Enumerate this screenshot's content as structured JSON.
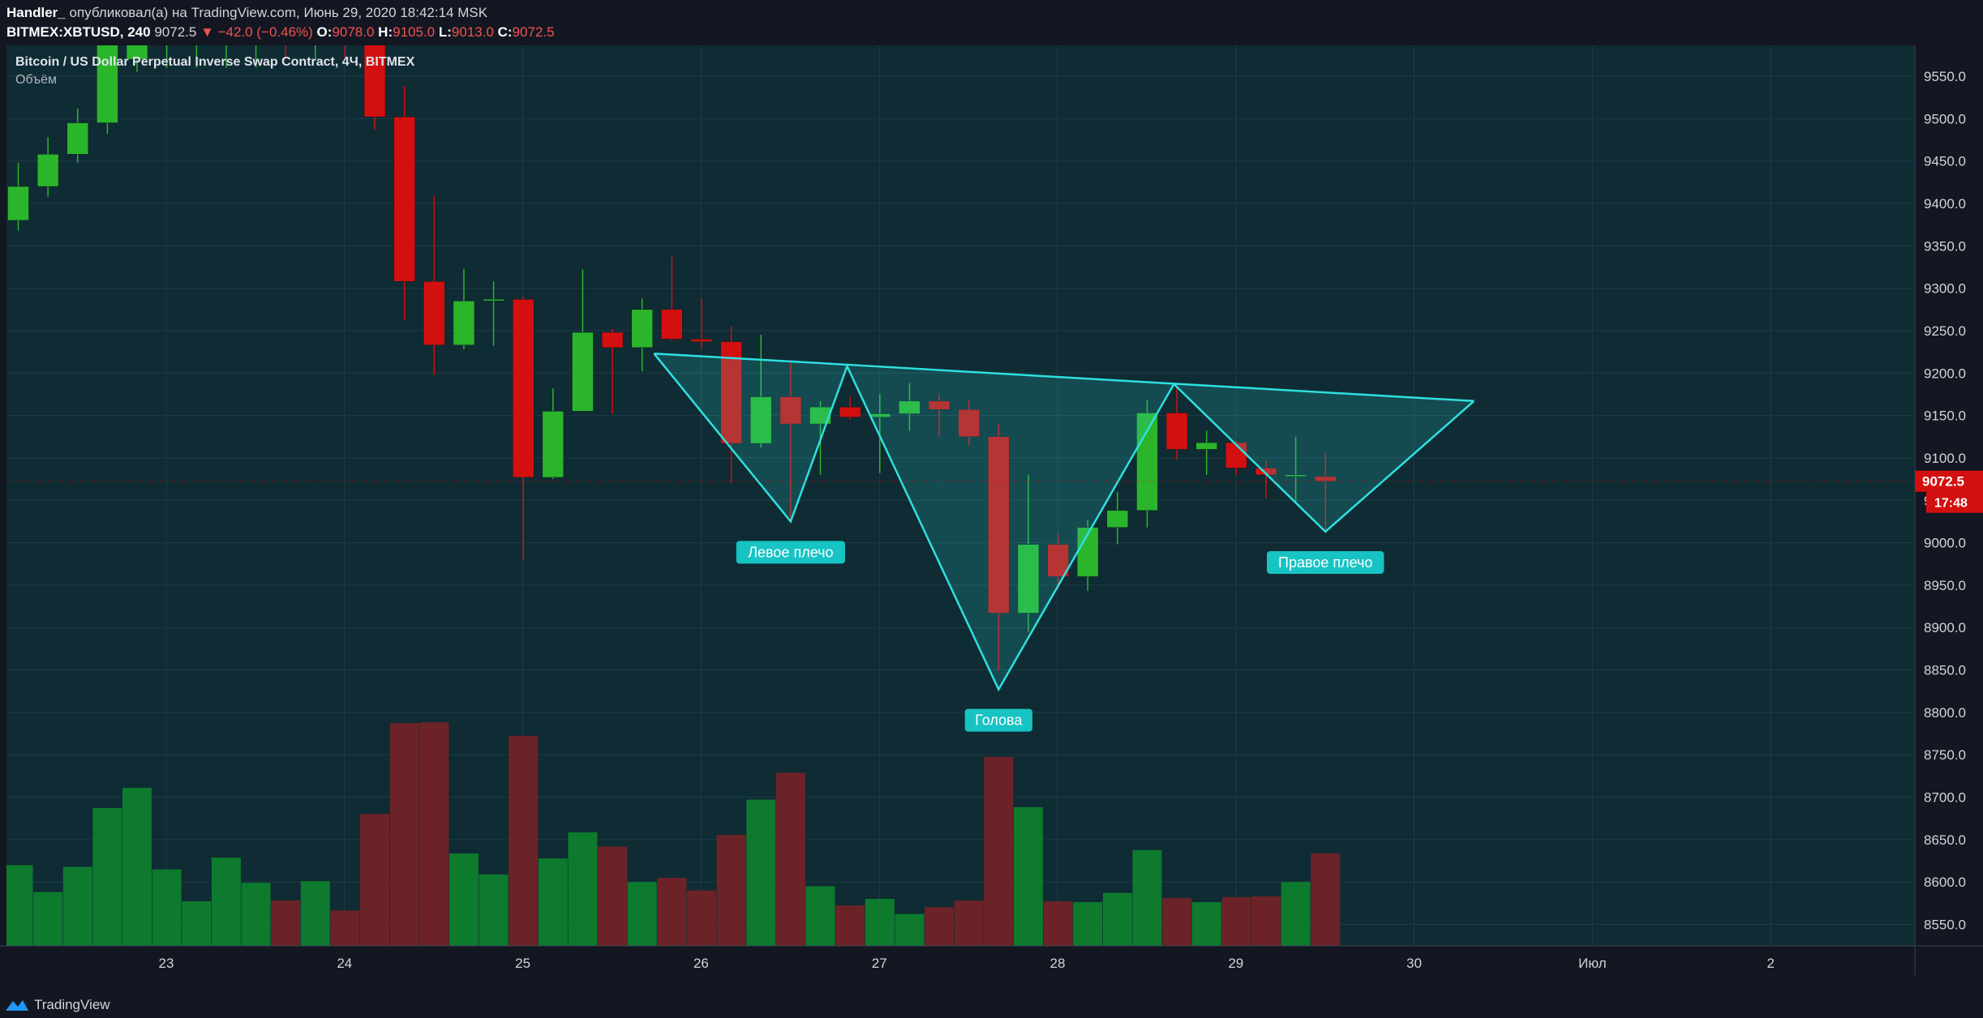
{
  "header": {
    "author": "Handler_",
    "published": "опубликовал(а) на TradingView.com, Июнь 29, 2020 18:42:14 MSK",
    "symbol": "BITMEX:XBTUSD, 240",
    "last": "9072.5",
    "change": "▼ −42.0 (−0.46%)",
    "o_label": "O:",
    "o_val": "9078.0",
    "h_label": "H:",
    "h_val": "9105.0",
    "l_label": "L:",
    "l_val": "9013.0",
    "c_label": "C:",
    "c_val": "9072.5"
  },
  "legend": {
    "title": "Bitcoin / US Dollar Perpetual Inverse Swap Contract, 4Ч, BITMEX",
    "volume_label": "Объём"
  },
  "footer": {
    "brand": "TradingView"
  },
  "colors": {
    "background": "#131722",
    "pane": "#0f2b33",
    "grid": "#1f3d47",
    "up": "#2bb52b",
    "down": "#d40f0f",
    "vol_up": "#0d7a2d",
    "vol_down": "#6b2327",
    "pattern": "#2ee0e0",
    "price_tag": "#d40f0f"
  },
  "chart_data": {
    "type": "candlestick",
    "title": "Bitcoin / US Dollar Perpetual Inverse Swap Contract, 4Ч, BITMEX",
    "ylim": [
      8510,
      9590
    ],
    "y_ticks": [
      "9550.0",
      "9500.0",
      "9450.0",
      "9400.0",
      "9350.0",
      "9300.0",
      "9250.0",
      "9200.0",
      "9150.0",
      "9100.0",
      "9050.0",
      "9000.0",
      "8950.0",
      "8900.0",
      "8850.0",
      "8800.0",
      "8750.0",
      "8700.0",
      "8650.0",
      "8600.0",
      "8550.0"
    ],
    "x_ticks": [
      {
        "label": "23",
        "t": 22.0
      },
      {
        "label": "24",
        "t": 28.0
      },
      {
        "label": "25",
        "t": 34.0
      },
      {
        "label": "26",
        "t": 40.0
      },
      {
        "label": "27",
        "t": 46.0
      },
      {
        "label": "28",
        "t": 52.0
      },
      {
        "label": "29",
        "t": 58.0
      },
      {
        "label": "30",
        "t": 64.0
      },
      {
        "label": "Июл",
        "t": 70.0
      },
      {
        "label": "2",
        "t": 76.0
      }
    ],
    "candles": [
      {
        "t": 17,
        "o": 9380,
        "h": 9448,
        "l": 9368,
        "c": 9420,
        "v": 96
      },
      {
        "t": 18,
        "o": 9420,
        "h": 9478,
        "l": 9408,
        "c": 9458,
        "v": 64
      },
      {
        "t": 19,
        "o": 9458,
        "h": 9512,
        "l": 9448,
        "c": 9495,
        "v": 94
      },
      {
        "t": 20,
        "o": 9495,
        "h": 9598,
        "l": 9482,
        "c": 9590,
        "v": 164
      },
      {
        "t": 21,
        "o": 9570,
        "h": 9600,
        "l": 9555,
        "c": 9590,
        "v": 188
      },
      {
        "t": 22,
        "o": 9600,
        "h": 9610,
        "l": 9560,
        "c": 9610,
        "v": 91
      },
      {
        "t": 23,
        "o": 9600,
        "h": 9610,
        "l": 9560,
        "c": 9600,
        "v": 53
      },
      {
        "t": 24,
        "o": 9600,
        "h": 9620,
        "l": 9560,
        "c": 9600,
        "v": 105
      },
      {
        "t": 25,
        "o": 9600,
        "h": 9610,
        "l": 9560,
        "c": 9610,
        "v": 75
      },
      {
        "t": 26,
        "o": 9610,
        "h": 9620,
        "l": 9570,
        "c": 9600,
        "v": 54
      },
      {
        "t": 27,
        "o": 9600,
        "h": 9610,
        "l": 9570,
        "c": 9610,
        "v": 77
      },
      {
        "t": 28,
        "o": 9610,
        "h": 9620,
        "l": 9570,
        "c": 9600,
        "v": 42
      },
      {
        "t": 29,
        "o": 9600,
        "h": 9615,
        "l": 9487,
        "c": 9502,
        "v": 157
      },
      {
        "t": 30,
        "o": 9502,
        "h": 9538,
        "l": 9262,
        "c": 9308,
        "v": 265
      },
      {
        "t": 31,
        "o": 9308,
        "h": 9409,
        "l": 9198,
        "c": 9233,
        "v": 266
      },
      {
        "t": 32,
        "o": 9233,
        "h": 9323,
        "l": 9228,
        "c": 9285,
        "v": 110
      },
      {
        "t": 33,
        "o": 9285,
        "h": 9308,
        "l": 9232,
        "c": 9287,
        "v": 85
      },
      {
        "t": 34,
        "o": 9287,
        "h": 9290,
        "l": 8980,
        "c": 9077,
        "v": 250
      },
      {
        "t": 35,
        "o": 9077,
        "h": 9182,
        "l": 9075,
        "c": 9155,
        "v": 104
      },
      {
        "t": 36,
        "o": 9155,
        "h": 9322,
        "l": 9155,
        "c": 9248,
        "v": 135
      },
      {
        "t": 37,
        "o": 9248,
        "h": 9252,
        "l": 9152,
        "c": 9230,
        "v": 118
      },
      {
        "t": 38,
        "o": 9230,
        "h": 9288,
        "l": 9202,
        "c": 9275,
        "v": 76
      },
      {
        "t": 39,
        "o": 9275,
        "h": 9337,
        "l": 9238,
        "c": 9240,
        "v": 81
      },
      {
        "t": 40,
        "o": 9240,
        "h": 9288,
        "l": 9228,
        "c": 9237,
        "v": 66
      },
      {
        "t": 41,
        "o": 9237,
        "h": 9255,
        "l": 9070,
        "c": 9117,
        "v": 132
      },
      {
        "t": 42,
        "o": 9117,
        "h": 9245,
        "l": 9112,
        "c": 9172,
        "v": 174
      },
      {
        "t": 43,
        "o": 9172,
        "h": 9212,
        "l": 9025,
        "c": 9140,
        "v": 206
      },
      {
        "t": 44,
        "o": 9140,
        "h": 9167,
        "l": 9080,
        "c": 9160,
        "v": 71
      },
      {
        "t": 45,
        "o": 9160,
        "h": 9172,
        "l": 9145,
        "c": 9148,
        "v": 48
      },
      {
        "t": 46,
        "o": 9148,
        "h": 9175,
        "l": 9082,
        "c": 9152,
        "v": 56
      },
      {
        "t": 47,
        "o": 9152,
        "h": 9188,
        "l": 9132,
        "c": 9167,
        "v": 38
      },
      {
        "t": 48,
        "o": 9167,
        "h": 9175,
        "l": 9125,
        "c": 9157,
        "v": 46
      },
      {
        "t": 49,
        "o": 9157,
        "h": 9168,
        "l": 9115,
        "c": 9125,
        "v": 54
      },
      {
        "t": 50,
        "o": 9125,
        "h": 9140,
        "l": 8850,
        "c": 8917,
        "v": 225
      },
      {
        "t": 51,
        "o": 8917,
        "h": 9080,
        "l": 8895,
        "c": 8998,
        "v": 165
      },
      {
        "t": 52,
        "o": 8998,
        "h": 9010,
        "l": 8945,
        "c": 8960,
        "v": 53
      },
      {
        "t": 53,
        "o": 8960,
        "h": 9027,
        "l": 8943,
        "c": 9018,
        "v": 52
      },
      {
        "t": 54,
        "o": 9018,
        "h": 9060,
        "l": 8998,
        "c": 9038,
        "v": 63
      },
      {
        "t": 55,
        "o": 9038,
        "h": 9168,
        "l": 9018,
        "c": 9153,
        "v": 114
      },
      {
        "t": 56,
        "o": 9153,
        "h": 9183,
        "l": 9098,
        "c": 9110,
        "v": 57
      },
      {
        "t": 57,
        "o": 9110,
        "h": 9132,
        "l": 9080,
        "c": 9118,
        "v": 52
      },
      {
        "t": 58,
        "o": 9118,
        "h": 9120,
        "l": 9080,
        "c": 9088,
        "v": 58
      },
      {
        "t": 59,
        "o": 9088,
        "h": 9097,
        "l": 9052,
        "c": 9080,
        "v": 59
      },
      {
        "t": 60,
        "o": 9080,
        "h": 9125,
        "l": 9048,
        "c": 9080,
        "v": 76
      },
      {
        "t": 61,
        "o": 9078,
        "h": 9105,
        "l": 9013,
        "c": 9072.5,
        "v": 110
      }
    ],
    "last_price": {
      "value": 9072.5,
      "label": "9072.5",
      "countdown": "17:48"
    },
    "pattern": {
      "name": "inverse head and shoulders",
      "points": [
        {
          "t": 38.4,
          "p": 9223
        },
        {
          "t": 43.0,
          "p": 9025
        },
        {
          "t": 44.9,
          "p": 9208
        },
        {
          "t": 50.0,
          "p": 8827
        },
        {
          "t": 55.9,
          "p": 9187
        },
        {
          "t": 61.0,
          "p": 9013
        },
        {
          "t": 66.0,
          "p": 9167
        }
      ],
      "labels": [
        {
          "text": "Левое плечо",
          "t": 43.0,
          "p": 9025
        },
        {
          "text": "Голова",
          "t": 50.0,
          "p": 8827
        },
        {
          "text": "Правое плечо",
          "t": 61.0,
          "p": 9013
        }
      ]
    }
  }
}
